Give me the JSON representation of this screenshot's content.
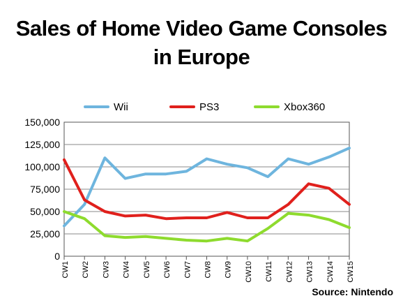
{
  "title_lines": [
    "Sales of Home Video Game Consoles",
    "in Europe"
  ],
  "source": "Source: Nintendo",
  "chart_data": {
    "type": "line",
    "title": "Sales of Home Video Game Consoles in Europe",
    "x": [
      "CW1",
      "CW2",
      "CW3",
      "CW4",
      "CW5",
      "CW6",
      "CW7",
      "CW8",
      "CW9",
      "CW10",
      "CW11",
      "CW12",
      "CW13",
      "CW14",
      "CW15"
    ],
    "ylim": [
      0,
      150000
    ],
    "yticks": [
      0,
      25000,
      50000,
      75000,
      100000,
      125000,
      150000
    ],
    "ytick_labels": [
      "0",
      "25,000",
      "50,000",
      "75,000",
      "100,000",
      "125,000",
      "150,000"
    ],
    "grid": "horizontal",
    "legend_position": "top",
    "series": [
      {
        "name": "Wii",
        "color": "#6EB5DE",
        "values": [
          34000,
          58000,
          110000,
          87000,
          92000,
          92000,
          95000,
          109000,
          103000,
          99000,
          89000,
          109000,
          103000,
          111000,
          121000
        ]
      },
      {
        "name": "PS3",
        "color": "#E0201C",
        "values": [
          108000,
          63000,
          50000,
          45000,
          46000,
          42000,
          43000,
          43000,
          49000,
          43000,
          43000,
          58000,
          81000,
          76000,
          58000
        ]
      },
      {
        "name": "Xbox360",
        "color": "#8EDB2E",
        "values": [
          50000,
          42000,
          23000,
          21000,
          22000,
          20000,
          18000,
          17000,
          20000,
          17000,
          31000,
          48000,
          46000,
          41000,
          32000
        ]
      }
    ]
  }
}
